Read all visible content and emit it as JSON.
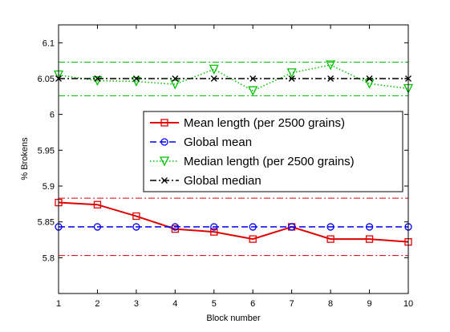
{
  "chart_data": {
    "type": "line",
    "title": "",
    "xlabel": "Block number",
    "ylabel": "% Brokens",
    "xlim": [
      1,
      10
    ],
    "ylim": [
      5.75,
      6.125
    ],
    "grid": false,
    "legend_position": "center-right",
    "x": [
      1,
      2,
      3,
      4,
      5,
      6,
      7,
      8,
      9,
      10
    ],
    "x_ticks": [
      1,
      2,
      3,
      4,
      5,
      6,
      7,
      8,
      9,
      10
    ],
    "y_ticks": [
      5.8,
      5.85,
      5.9,
      5.95,
      6,
      6.05,
      6.1
    ],
    "y_tick_labels": [
      "5.8",
      "5.85",
      "5.9",
      "5.95",
      "6",
      "6.05",
      "6.1"
    ],
    "series": [
      {
        "name": "Mean length (per 2500 grains)",
        "color": "#e00000",
        "line_style": "solid",
        "marker": "square",
        "values": [
          5.877,
          5.874,
          5.858,
          5.84,
          5.836,
          5.826,
          5.843,
          5.826,
          5.826,
          5.822
        ]
      },
      {
        "name": "Global mean",
        "color": "#0000ff",
        "line_style": "dashed",
        "marker": "circle",
        "values": [
          5.843,
          5.843,
          5.843,
          5.843,
          5.843,
          5.843,
          5.843,
          5.843,
          5.843,
          5.843
        ]
      },
      {
        "name": "Median length (per 2500 grains)",
        "color": "#00c000",
        "line_style": "dotted",
        "marker": "triangle-down",
        "values": [
          6.055,
          6.047,
          6.046,
          6.042,
          6.063,
          6.033,
          6.058,
          6.069,
          6.043,
          6.036
        ]
      },
      {
        "name": "Global median",
        "color": "#000000",
        "line_style": "dashdot",
        "marker": "x",
        "values": [
          6.05,
          6.05,
          6.05,
          6.05,
          6.05,
          6.05,
          6.05,
          6.05,
          6.05,
          6.05
        ]
      }
    ],
    "reference_lines": [
      {
        "y": 5.883,
        "color": "#e00000",
        "line_style": "dashdot"
      },
      {
        "y": 5.803,
        "color": "#e00000",
        "line_style": "dashdot"
      },
      {
        "y": 6.073,
        "color": "#00c000",
        "line_style": "dashdot"
      },
      {
        "y": 6.026,
        "color": "#00c000",
        "line_style": "dashdot"
      }
    ]
  }
}
